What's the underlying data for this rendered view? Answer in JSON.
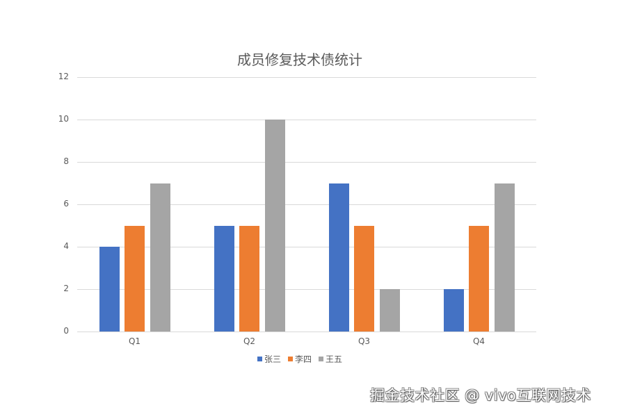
{
  "chart_data": {
    "type": "bar",
    "title": "成员修复技术债统计",
    "categories": [
      "Q1",
      "Q2",
      "Q3",
      "Q4"
    ],
    "series": [
      {
        "name": "张三",
        "color": "#4472c4",
        "values": [
          4,
          5,
          7,
          2
        ]
      },
      {
        "name": "李四",
        "color": "#ed7d31",
        "values": [
          5,
          5,
          5,
          5
        ]
      },
      {
        "name": "王五",
        "color": "#a5a5a5",
        "values": [
          7,
          10,
          2,
          7
        ]
      }
    ],
    "xlabel": "",
    "ylabel": "",
    "ylim": [
      0,
      12
    ],
    "yticks": [
      "0",
      "2",
      "4",
      "6",
      "8",
      "10",
      "12"
    ],
    "grid": true,
    "legend_position": "bottom"
  },
  "watermark": "掘金技术社区 @ vivo互联网技术"
}
